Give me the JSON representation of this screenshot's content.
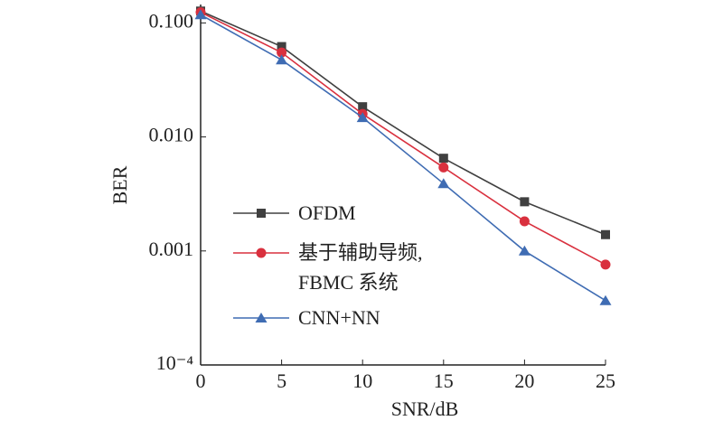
{
  "chart_data": {
    "type": "line",
    "xlabel": "SNR/dB",
    "ylabel": "BER",
    "x": [
      0,
      5,
      10,
      15,
      20,
      25
    ],
    "xlim": [
      0,
      25
    ],
    "xticks": [
      0,
      5,
      10,
      15,
      20,
      25
    ],
    "ylim": [
      0.0001,
      0.145
    ],
    "ylog": true,
    "yticks": [
      {
        "value": 0.0001,
        "label": "10⁻⁴"
      },
      {
        "value": 0.001,
        "label": "0.001"
      },
      {
        "value": 0.01,
        "label": "0.010"
      },
      {
        "value": 0.1,
        "label": "0.100"
      }
    ],
    "legend": "lower left",
    "series": [
      {
        "name": "OFDM",
        "color": "#404040",
        "marker": "square",
        "values": [
          0.127,
          0.062,
          0.0184,
          0.0065,
          0.0027,
          0.00139
        ]
      },
      {
        "name": "基于辅助导频,\nFBMC 系统",
        "color": "#d9303e",
        "marker": "circle",
        "values": [
          0.124,
          0.055,
          0.0159,
          0.0054,
          0.00182,
          0.00076
        ]
      },
      {
        "name": "CNN+NN",
        "color": "#3f6cb3",
        "marker": "triangle",
        "values": [
          0.118,
          0.0474,
          0.0148,
          0.0039,
          0.001,
          0.000367
        ]
      }
    ]
  }
}
